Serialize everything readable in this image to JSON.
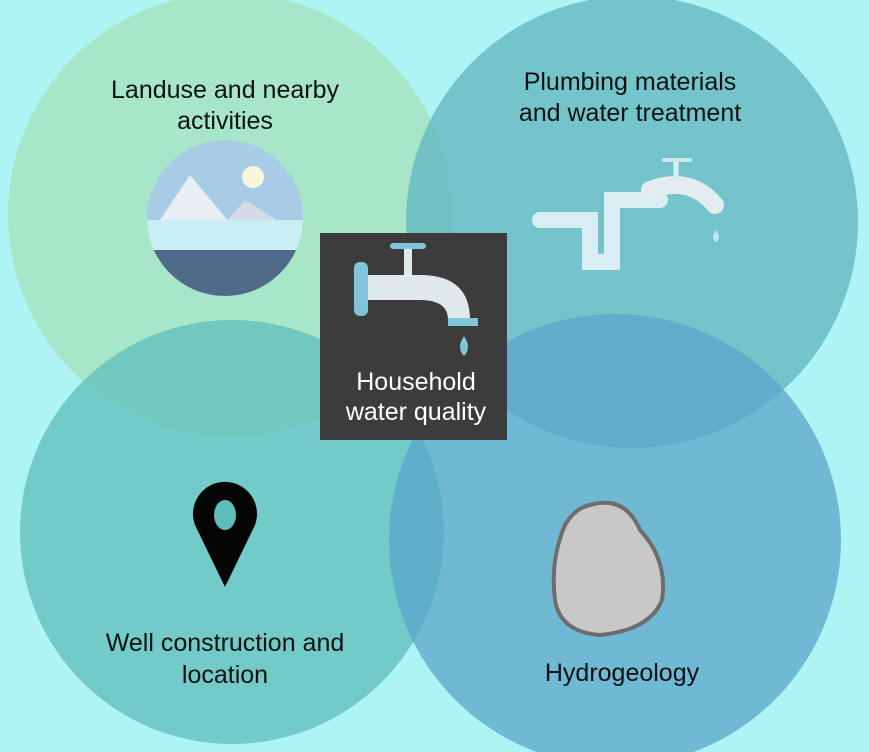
{
  "center": {
    "lines": [
      "Household",
      "water quality"
    ]
  },
  "nodes": [
    {
      "lines": [
        "Landuse and nearby",
        "activities"
      ]
    },
    {
      "lines": [
        "Plumbing materials",
        "and water treatment"
      ]
    },
    {
      "lines": [
        "Well construction and",
        "location"
      ]
    },
    {
      "lines": [
        "Hydrogeology"
      ]
    }
  ]
}
